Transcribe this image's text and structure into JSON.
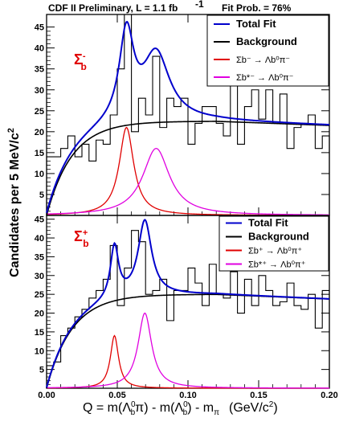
{
  "header": {
    "left": "CDF II Preliminary, L = 1.1 fb",
    "left_sup": "-1",
    "right": "Fit Prob. = 76%"
  },
  "axes": {
    "ylabel": "Candidates per 5 MeV/c",
    "ylabel_sup": "2",
    "xlabel_prefix": "Q = m(Λ",
    "xlabel_mid": "π) - m(Λ",
    "xlabel_suffix": ") - m",
    "xlabel_pi": "π",
    "xlabel_unit": "(GeV/c",
    "xlabel_unit_sup": "2",
    "xlabel_unit_close": ")",
    "x_ticks": [
      "0.00",
      "0.05",
      "0.10",
      "0.15",
      "0.20"
    ]
  },
  "colors": {
    "total_fit": "#0000cc",
    "background": "#000000",
    "signal": "#e00000",
    "reflection": "#e000e0",
    "histogram": "#000000",
    "tag": "#e00000"
  },
  "chart_data": [
    {
      "type": "line",
      "panel": "Σb⁻",
      "tag": "Σ",
      "tag_sup": "-",
      "tag_sub": "b",
      "xlim": [
        0,
        0.2
      ],
      "ylim": [
        0,
        48
      ],
      "y_ticks": [
        5,
        10,
        15,
        20,
        25,
        30,
        35,
        40,
        45
      ],
      "legend": {
        "total_fit": "Total Fit",
        "background": "Background",
        "signal": "Σb⁻ → Λb⁰π⁻",
        "reflection": "Σb*⁻ → Λb⁰π⁻"
      },
      "histogram": {
        "bin_width": 0.005,
        "bin_start": 0.0,
        "counts": [
          14,
          14,
          16,
          19,
          14,
          17,
          13,
          18,
          17,
          24,
          35,
          48,
          20,
          28,
          24,
          38,
          21,
          28,
          26,
          28,
          17,
          22,
          26,
          26,
          22,
          19,
          31,
          17,
          26,
          30,
          23,
          30,
          22,
          29,
          16,
          21,
          22,
          24,
          16,
          19
        ]
      },
      "signal": {
        "mean": 0.0565,
        "width": 0.0062,
        "height": 21
      },
      "reflection": {
        "mean": 0.0775,
        "width": 0.0115,
        "height": 16
      },
      "background": {
        "threshold": 0.0,
        "plateau": 22.5,
        "power": 0.45,
        "slope": 8
      }
    },
    {
      "type": "line",
      "panel": "Σb⁺",
      "tag": "Σ",
      "tag_sup": "+",
      "tag_sub": "b",
      "xlim": [
        0,
        0.2
      ],
      "ylim": [
        0,
        46
      ],
      "y_ticks": [
        5,
        10,
        15,
        20,
        25,
        30,
        35,
        40,
        45
      ],
      "legend": {
        "total_fit": "Total Fit",
        "background": "Background",
        "signal": "Σb⁺ → Λb⁰π⁺",
        "reflection": "Σb*⁺ → Λb⁰π⁺"
      },
      "histogram": {
        "bin_width": 0.005,
        "bin_start": 0.0,
        "counts": [
          6,
          7,
          14,
          16,
          19,
          21,
          24,
          26,
          29,
          38,
          22,
          32,
          42,
          39,
          25,
          26,
          29,
          18,
          26,
          26,
          32,
          28,
          22,
          33,
          25,
          24,
          31,
          20,
          29,
          22,
          30,
          26,
          22,
          23,
          28,
          22,
          21,
          25,
          16,
          26
        ]
      },
      "signal": {
        "mean": 0.048,
        "width": 0.0035,
        "height": 14
      },
      "reflection": {
        "mean": 0.0695,
        "width": 0.0058,
        "height": 20
      },
      "background": {
        "threshold": 0.0,
        "plateau": 25,
        "power": 0.42,
        "slope": 9
      }
    }
  ]
}
